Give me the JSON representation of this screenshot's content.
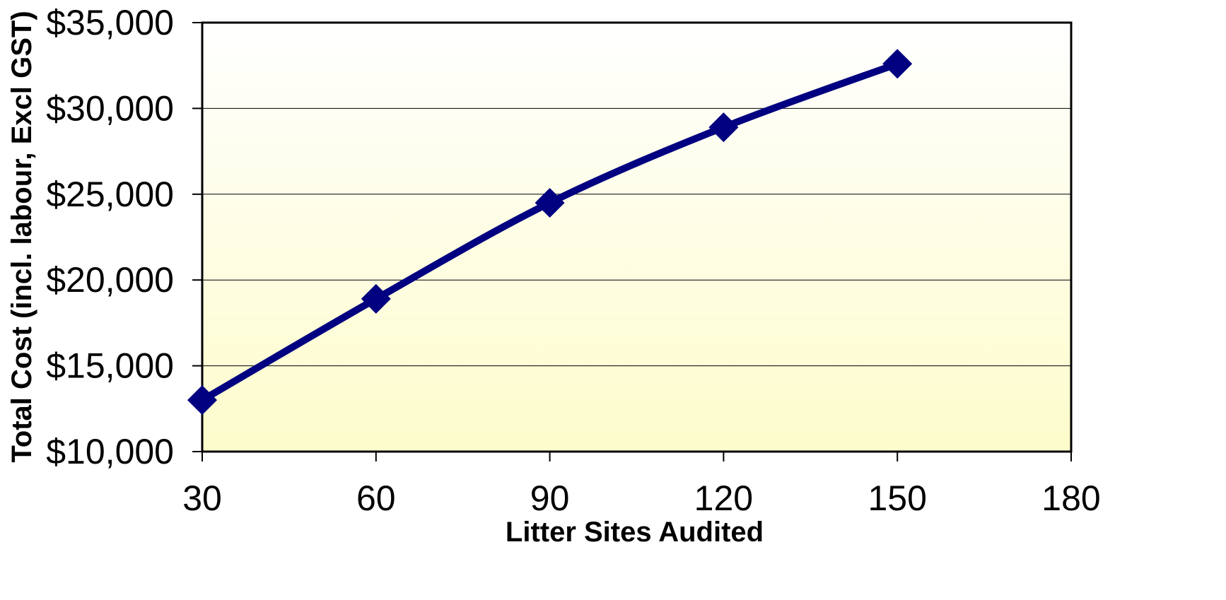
{
  "chart_data": {
    "type": "line",
    "title": "",
    "xlabel": "Litter Sites Audited",
    "ylabel": "Total Cost (incl. labour, Excl GST)",
    "x": [
      30,
      60,
      90,
      120,
      150
    ],
    "series": [
      {
        "values": [
          13000,
          18900,
          24500,
          28900,
          32600
        ],
        "color": "#000080",
        "marker": "diamond"
      }
    ],
    "xlim": [
      30,
      180
    ],
    "ylim": [
      10000,
      35000
    ],
    "x_ticks": [
      30,
      60,
      90,
      120,
      150,
      180
    ],
    "x_tick_labels": [
      "30",
      "60",
      "90",
      "120",
      "150",
      "180"
    ],
    "y_ticks": [
      10000,
      15000,
      20000,
      25000,
      30000,
      35000
    ],
    "y_tick_labels": [
      "$10,000",
      "$15,000",
      "$20,000",
      "$25,000",
      "$30,000",
      "$35,000"
    ],
    "grid": true,
    "legend": "none",
    "plot_background": "light yellow gradient",
    "colors": {
      "line": "#000080",
      "gridline": "#000000",
      "frame": "#000000",
      "background_top": "#ffffff",
      "background_bottom": "#fdfccb"
    }
  }
}
